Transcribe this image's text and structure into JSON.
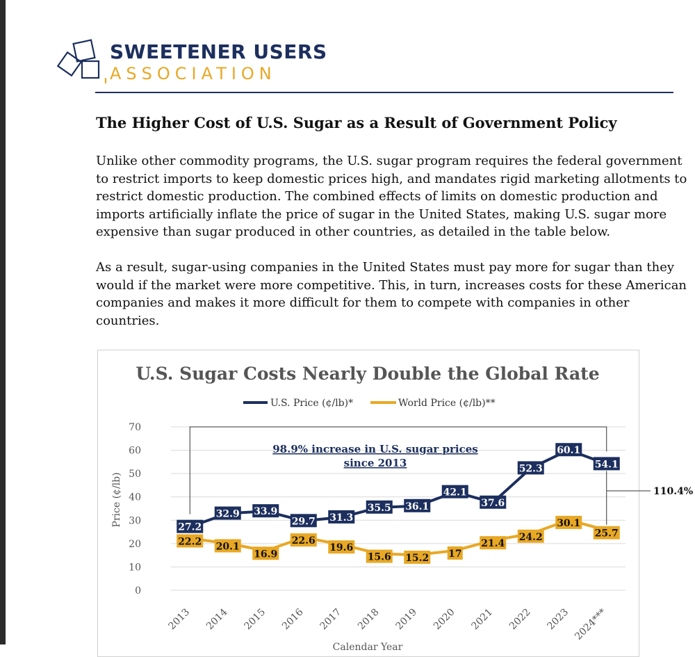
{
  "logo": {
    "line1": "SWEETENER USERS",
    "line2": "ASSOCIATION"
  },
  "heading": "The Higher Cost of U.S. Sugar as a Result of Government Policy",
  "paragraphs": [
    "Unlike other commodity programs, the U.S. sugar program requires the federal government to restrict imports to keep domestic prices high, and mandates rigid marketing allotments to restrict domestic production. The combined effects of limits on domestic production and imports artificially inflate the price of sugar in the United States, making U.S. sugar more expensive than sugar produced in other countries, as detailed in the table below.",
    "As a result, sugar-using companies in the United States must pay more for sugar than they would if the market were more competitive. This, in turn, increases costs for these American companies and makes it more difficult for them to compete with companies in other countries."
  ],
  "colors": {
    "us": "#1c2f5e",
    "world": "#e8a825",
    "brand_navy": "#1c2f5e",
    "brand_gold": "#e8a825"
  },
  "chart_data": {
    "type": "line",
    "title": "U.S. Sugar Costs Nearly Double the Global Rate",
    "categories": [
      "2013",
      "2014",
      "2015",
      "2016",
      "2017",
      "2018",
      "2019",
      "2020",
      "2021",
      "2022",
      "2023",
      "2024***"
    ],
    "series": [
      {
        "name": "U.S. Price (¢/lb)*",
        "values": [
          27.2,
          32.9,
          33.9,
          29.7,
          31.3,
          35.5,
          36.1,
          42.1,
          37.6,
          52.3,
          60.1,
          54.1
        ]
      },
      {
        "name": "World Price (¢/lb)**",
        "values": [
          22.2,
          20.1,
          16.9,
          22.6,
          19.6,
          15.6,
          15.2,
          17,
          21.4,
          24.2,
          30.1,
          25.7
        ]
      }
    ],
    "yticks": [
      0,
      10,
      20,
      30,
      40,
      50,
      60,
      70
    ],
    "ylim": [
      0,
      70
    ],
    "ylabel": "Price (¢/lb)",
    "xlabel": "Calendar Year",
    "annotations": {
      "increase_line1": "98.9% increase in U.S. sugar prices",
      "increase_line2": "since 2013",
      "gap_label": "110.4%"
    },
    "legend_position": "top"
  }
}
